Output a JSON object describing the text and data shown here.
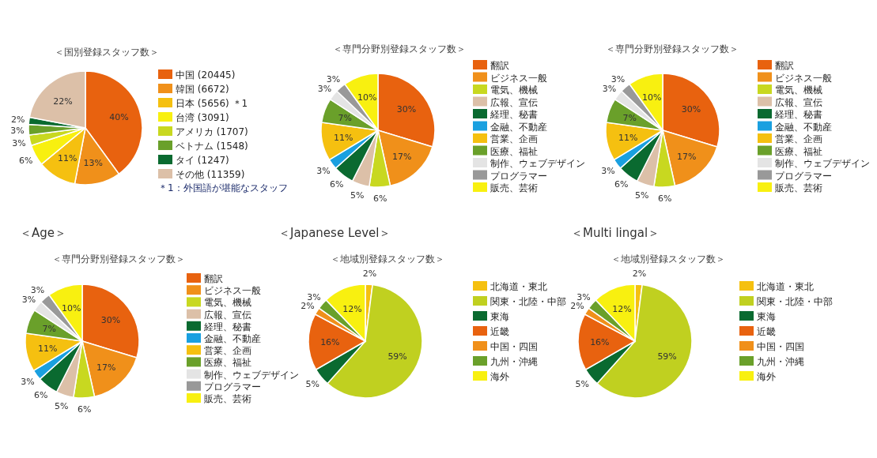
{
  "chart_data": [
    {
      "type": "pie",
      "title": "＜国別登録スタッフ数＞",
      "categories": [
        "中国 (20445)",
        "韓国 (6672)",
        "日本 (5656) ＊1",
        "台湾 (3091)",
        "アメリカ (1707)",
        "ベトナム (1548)",
        "タイ (1247)",
        "その他 (11359)"
      ],
      "values": [
        40,
        13,
        11,
        6,
        3,
        3,
        2,
        22
      ],
      "value_labels": [
        "40%",
        "13%",
        "11%",
        "6%",
        "3%",
        "3%",
        "2%",
        "22%"
      ],
      "colors": [
        "#e8620f",
        "#f0901a",
        "#f5c010",
        "#f8f010",
        "#c8d820",
        "#6aa02a",
        "#0a6a30",
        "#dcc0a8"
      ],
      "legend": "right",
      "annotations": [
        "＊1：外国語が堪能なスタッフ"
      ]
    },
    {
      "type": "pie",
      "title": "＜専門分野別登録スタッフ数＞",
      "categories": [
        "翻訳",
        "ビジネス一般",
        "電気、機械",
        "広報、宣伝",
        "経理、秘書",
        "金融、不動産",
        "営業、企画",
        "医療、福祉",
        "制作、ウェブデザイン",
        "プログラマー",
        "販売、芸術"
      ],
      "values": [
        30,
        17,
        6,
        5,
        6,
        3,
        11,
        7,
        3,
        3,
        10
      ],
      "value_labels": [
        "30%",
        "17%",
        "6%",
        "5%",
        "6%",
        "3%",
        "11%",
        "7%",
        "3%",
        "3%",
        "10%"
      ],
      "colors": [
        "#e8620f",
        "#f0901a",
        "#c8d820",
        "#dcc0a8",
        "#0a6a30",
        "#1aa0e0",
        "#f5c010",
        "#6aa02a",
        "#e4e4e4",
        "#999999",
        "#f8f010"
      ],
      "legend": "right"
    },
    {
      "type": "pie",
      "title": "＜専門分野別登録スタッフ数＞",
      "categories": [
        "翻訳",
        "ビジネス一般",
        "電気、機械",
        "広報、宣伝",
        "経理、秘書",
        "金融、不動産",
        "営業、企画",
        "医療、福祉",
        "制作、ウェブデザイン",
        "プログラマー",
        "販売、芸術"
      ],
      "values": [
        30,
        17,
        6,
        5,
        6,
        3,
        11,
        7,
        3,
        3,
        10
      ],
      "value_labels": [
        "30%",
        "17%",
        "6%",
        "5%",
        "6%",
        "3%",
        "11%",
        "7%",
        "3%",
        "3%",
        "10%"
      ],
      "colors": [
        "#e8620f",
        "#f0901a",
        "#c8d820",
        "#dcc0a8",
        "#0a6a30",
        "#1aa0e0",
        "#f5c010",
        "#6aa02a",
        "#e4e4e4",
        "#999999",
        "#f8f010"
      ],
      "legend": "right"
    },
    {
      "type": "pie",
      "title": "＜Age＞",
      "subtitle": "＜専門分野別登録スタッフ数＞",
      "categories": [
        "翻訳",
        "ビジネス一般",
        "電気、機械",
        "広報、宣伝",
        "経理、秘書",
        "金融、不動産",
        "営業、企画",
        "医療、福祉",
        "制作、ウェブデザイン",
        "プログラマー",
        "販売、芸術"
      ],
      "values": [
        30,
        17,
        6,
        5,
        6,
        3,
        11,
        7,
        3,
        3,
        10
      ],
      "value_labels": [
        "30%",
        "17%",
        "6%",
        "5%",
        "6%",
        "3%",
        "11%",
        "7%",
        "3%",
        "3%",
        "10%"
      ],
      "colors": [
        "#e8620f",
        "#f0901a",
        "#c8d820",
        "#dcc0a8",
        "#0a6a30",
        "#1aa0e0",
        "#f5c010",
        "#6aa02a",
        "#e4e4e4",
        "#999999",
        "#f8f010"
      ],
      "legend": "right"
    },
    {
      "type": "pie",
      "title": "＜Japanese Level＞",
      "subtitle": "＜地域別登録スタッフ数＞",
      "categories": [
        "北海道・東北",
        "関東・北陸・中部",
        "東海",
        "近畿",
        "中国・四国",
        "九州・沖縄",
        "海外"
      ],
      "values": [
        2,
        59,
        5,
        16,
        2,
        3,
        12
      ],
      "value_labels": [
        "2%",
        "59%",
        "5%",
        "16%",
        "2%",
        "3%",
        "12%"
      ],
      "colors": [
        "#f5c010",
        "#c0d020",
        "#0a6a30",
        "#e8620f",
        "#f0901a",
        "#6aa02a",
        "#f8f010"
      ],
      "legend": "right"
    },
    {
      "type": "pie",
      "title": "＜Multi lingal＞",
      "subtitle": "＜地域別登録スタッフ数＞",
      "categories": [
        "北海道・東北",
        "関東・北陸・中部",
        "東海",
        "近畿",
        "中国・四国",
        "九州・沖縄",
        "海外"
      ],
      "values": [
        2,
        59,
        5,
        16,
        2,
        3,
        12
      ],
      "value_labels": [
        "2%",
        "59%",
        "5%",
        "16%",
        "2%",
        "3%",
        "12%"
      ],
      "colors": [
        "#f5c010",
        "#c0d020",
        "#0a6a30",
        "#e8620f",
        "#f0901a",
        "#6aa02a",
        "#f8f010"
      ],
      "legend": "right"
    }
  ]
}
